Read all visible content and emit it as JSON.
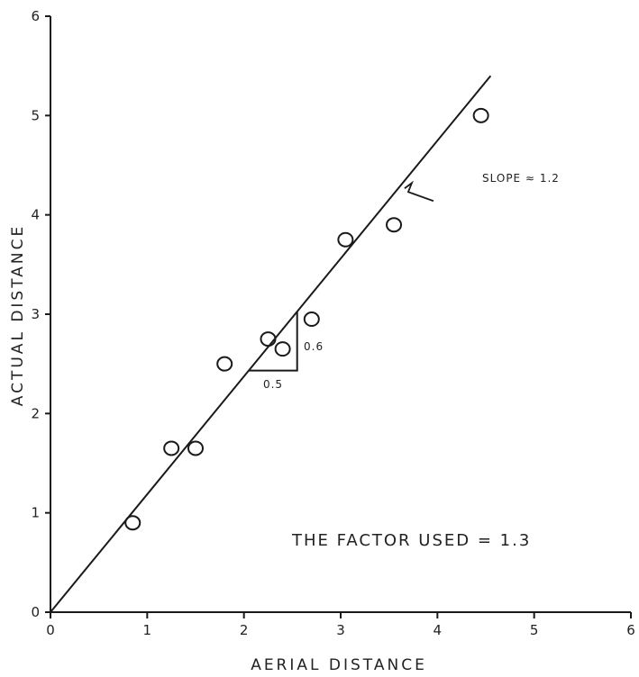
{
  "chart_data": {
    "type": "scatter",
    "xlabel": "AERIAL DISTANCE",
    "ylabel": "ACTUAL DISTANCE",
    "xlim": [
      0,
      6
    ],
    "ylim": [
      0,
      6
    ],
    "x_ticks": [
      "0",
      "1",
      "2",
      "3",
      "4",
      "5",
      "6"
    ],
    "y_ticks": [
      "0",
      "1",
      "2",
      "3",
      "4",
      "5",
      "6"
    ],
    "grid": false,
    "points": [
      {
        "x": 0.85,
        "y": 0.9
      },
      {
        "x": 1.25,
        "y": 1.65
      },
      {
        "x": 1.5,
        "y": 1.65
      },
      {
        "x": 1.8,
        "y": 2.5
      },
      {
        "x": 2.25,
        "y": 2.75
      },
      {
        "x": 2.4,
        "y": 2.65
      },
      {
        "x": 2.7,
        "y": 2.95
      },
      {
        "x": 3.05,
        "y": 3.75
      },
      {
        "x": 3.55,
        "y": 3.9
      },
      {
        "x": 4.45,
        "y": 5.0
      }
    ],
    "fit_line": {
      "x0": 0,
      "y0": 0,
      "x1": 4.55,
      "y1": 5.4,
      "slope_label": "SLOPE ≈ 1.2"
    },
    "slope_triangle": {
      "x_start": 2.05,
      "x_end": 2.55,
      "run_label": "0.5",
      "rise_label": "0.6"
    },
    "annotation": "THE FACTOR USED = 1.3"
  }
}
